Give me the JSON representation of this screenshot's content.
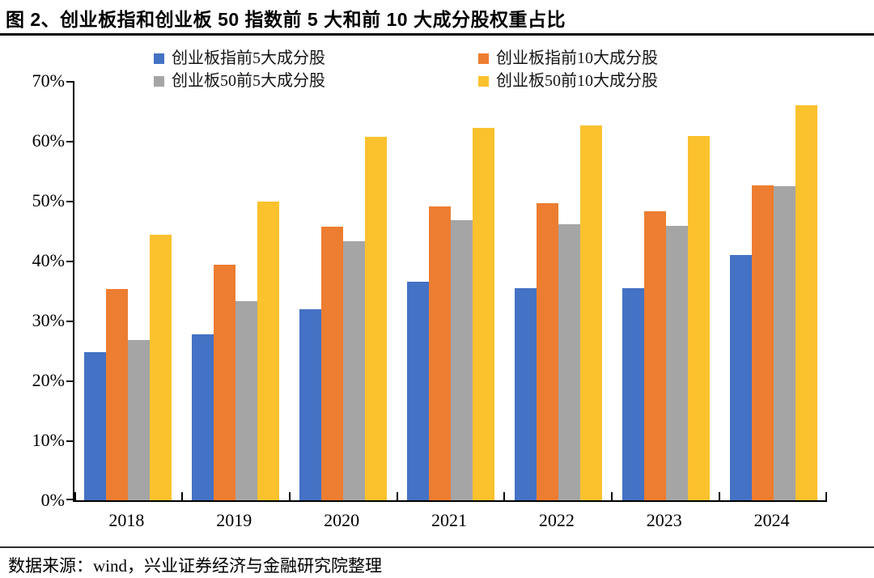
{
  "title": "图 2、创业板指和创业板 50 指数前 5 大和前 10 大成分股权重占比",
  "source": "数据来源：wind，兴业证券经济与金融研究院整理",
  "chart_data": {
    "type": "bar",
    "title": "创业板指和创业板50指数前5大和前10大成分股权重占比",
    "categories": [
      "2018",
      "2019",
      "2020",
      "2021",
      "2022",
      "2023",
      "2024"
    ],
    "series": [
      {
        "name": "创业板指前5大成分股",
        "color": "#4472C4",
        "values": [
          24.7,
          27.7,
          31.9,
          36.5,
          35.4,
          35.4,
          41.0
        ]
      },
      {
        "name": "创业板指前10大成分股",
        "color": "#ED7D31",
        "values": [
          35.3,
          39.3,
          45.7,
          49.1,
          49.6,
          48.2,
          52.6
        ]
      },
      {
        "name": "创业板50前5大成分股",
        "color": "#A5A5A5",
        "values": [
          26.7,
          33.2,
          43.3,
          46.7,
          46.1,
          45.8,
          52.4
        ]
      },
      {
        "name": "创业板50前10大成分股",
        "color": "#FBC22E",
        "values": [
          44.3,
          49.8,
          60.7,
          62.1,
          62.6,
          60.8,
          66.0
        ]
      }
    ],
    "xlabel": "",
    "ylabel": "",
    "ylim": [
      0,
      70
    ],
    "ytick_step": 10,
    "ytick_labels": [
      "0%",
      "10%",
      "20%",
      "30%",
      "40%",
      "50%",
      "60%",
      "70%"
    ],
    "grid": false,
    "legend_position": "top"
  }
}
